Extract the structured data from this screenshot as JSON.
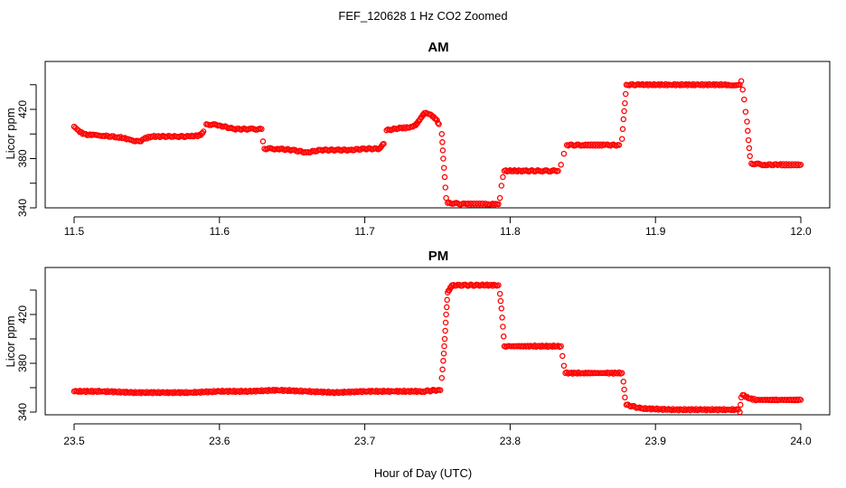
{
  "figure": {
    "title": "FEF_120628  1 Hz CO2 Zoomed",
    "xlabel": "Hour of Day (UTC)"
  },
  "chart_data": [
    {
      "type": "scatter",
      "title": "AM",
      "xlabel": "Hour of Day (UTC)",
      "ylabel": "Licor ppm",
      "xlim": [
        11.5,
        12.0
      ],
      "ylim": [
        340,
        450
      ],
      "xticks": [
        "11.5",
        "11.6",
        "11.7",
        "11.8",
        "11.9",
        "12.0"
      ],
      "yticks": [
        "340",
        "380",
        "420"
      ],
      "grid": false,
      "color": "#ff0000",
      "series": [
        {
          "values": [
            [
              11.5,
              406
            ],
            [
              11.503,
              403
            ],
            [
              11.506,
              400
            ],
            [
              11.512,
              399
            ],
            [
              11.52,
              398.5
            ],
            [
              11.53,
              397.5
            ],
            [
              11.537,
              396
            ],
            [
              11.542,
              394
            ],
            [
              11.546,
              394
            ],
            [
              11.548,
              396
            ],
            [
              11.553,
              398
            ],
            [
              11.56,
              398
            ],
            [
              11.57,
              398
            ],
            [
              11.58,
              398
            ],
            [
              11.587,
              399
            ],
            [
              11.589,
              402
            ],
            [
              11.591,
              408
            ],
            [
              11.6,
              407
            ],
            [
              11.61,
              404
            ],
            [
              11.62,
              404
            ],
            [
              11.629,
              404
            ],
            [
              11.63,
              394
            ],
            [
              11.631,
              388
            ],
            [
              11.64,
              388
            ],
            [
              11.65,
              387
            ],
            [
              11.66,
              385
            ],
            [
              11.67,
              387
            ],
            [
              11.68,
              387
            ],
            [
              11.69,
              387
            ],
            [
              11.7,
              388
            ],
            [
              11.71,
              388
            ],
            [
              11.713,
              392
            ],
            [
              11.715,
              403
            ],
            [
              11.725,
              405
            ],
            [
              11.73,
              405
            ],
            [
              11.735,
              407
            ],
            [
              11.738,
              412
            ],
            [
              11.741,
              417
            ],
            [
              11.745,
              416
            ],
            [
              11.749,
              412
            ],
            [
              11.751,
              408
            ],
            [
              11.753,
              400
            ],
            [
              11.754,
              380
            ],
            [
              11.755,
              365
            ],
            [
              11.756,
              348
            ],
            [
              11.757,
              344
            ],
            [
              11.77,
              343
            ],
            [
              11.785,
              343
            ],
            [
              11.792,
              343
            ],
            [
              11.793,
              348
            ],
            [
              11.794,
              358
            ],
            [
              11.795,
              365
            ],
            [
              11.796,
              370
            ],
            [
              11.81,
              370
            ],
            [
              11.82,
              370
            ],
            [
              11.833,
              370
            ],
            [
              11.835,
              375
            ],
            [
              11.837,
              384
            ],
            [
              11.839,
              391
            ],
            [
              11.85,
              391
            ],
            [
              11.865,
              391
            ],
            [
              11.875,
              391
            ],
            [
              11.877,
              396
            ],
            [
              11.878,
              412
            ],
            [
              11.879,
              425
            ],
            [
              11.88,
              440
            ],
            [
              11.89,
              440
            ],
            [
              11.91,
              440
            ],
            [
              11.93,
              440
            ],
            [
              11.95,
              440
            ],
            [
              11.958,
              440
            ],
            [
              11.959,
              443
            ],
            [
              11.96,
              436
            ],
            [
              11.961,
              428
            ],
            [
              11.962,
              418
            ],
            [
              11.963,
              410
            ],
            [
              11.964,
              395
            ],
            [
              11.965,
              382
            ],
            [
              11.966,
              376
            ],
            [
              11.975,
              375
            ],
            [
              11.985,
              375
            ],
            [
              12.0,
              375
            ]
          ]
        }
      ]
    },
    {
      "type": "scatter",
      "title": "PM",
      "xlabel": "Hour of Day (UTC)",
      "ylabel": "Licor ppm",
      "xlim": [
        23.5,
        24.0
      ],
      "ylim": [
        340,
        450
      ],
      "xticks": [
        "23.5",
        "23.6",
        "23.7",
        "23.8",
        "23.9",
        "24.0"
      ],
      "yticks": [
        "340",
        "380",
        "420"
      ],
      "grid": false,
      "color": "#ff0000",
      "series": [
        {
          "values": [
            [
              23.5,
              357
            ],
            [
              23.52,
              357
            ],
            [
              23.54,
              356
            ],
            [
              23.56,
              356
            ],
            [
              23.58,
              356
            ],
            [
              23.6,
              357
            ],
            [
              23.62,
              357
            ],
            [
              23.64,
              358
            ],
            [
              23.66,
              357
            ],
            [
              23.68,
              356
            ],
            [
              23.7,
              357
            ],
            [
              23.72,
              357
            ],
            [
              23.74,
              357
            ],
            [
              23.75,
              358
            ],
            [
              23.752,
              358
            ],
            [
              23.753,
              368
            ],
            [
              23.754,
              382
            ],
            [
              23.755,
              400
            ],
            [
              23.756,
              420
            ],
            [
              23.757,
              438
            ],
            [
              23.76,
              444
            ],
            [
              23.77,
              444
            ],
            [
              23.78,
              444
            ],
            [
              23.792,
              444
            ],
            [
              23.793,
              437
            ],
            [
              23.794,
              425
            ],
            [
              23.795,
              410
            ],
            [
              23.796,
              394
            ],
            [
              23.8,
              394
            ],
            [
              23.815,
              394
            ],
            [
              23.835,
              394
            ],
            [
              23.836,
              386
            ],
            [
              23.837,
              378
            ],
            [
              23.838,
              372
            ],
            [
              23.85,
              372
            ],
            [
              23.865,
              372
            ],
            [
              23.877,
              372
            ],
            [
              23.878,
              365
            ],
            [
              23.879,
              352
            ],
            [
              23.88,
              346
            ],
            [
              23.89,
              343
            ],
            [
              23.91,
              342
            ],
            [
              23.93,
              342
            ],
            [
              23.95,
              342
            ],
            [
              23.957,
              342
            ],
            [
              23.958,
              340
            ],
            [
              23.959,
              352
            ],
            [
              23.96,
              354
            ],
            [
              23.965,
              351
            ],
            [
              23.97,
              350
            ],
            [
              23.985,
              350
            ],
            [
              24.0,
              350
            ]
          ]
        }
      ]
    }
  ]
}
